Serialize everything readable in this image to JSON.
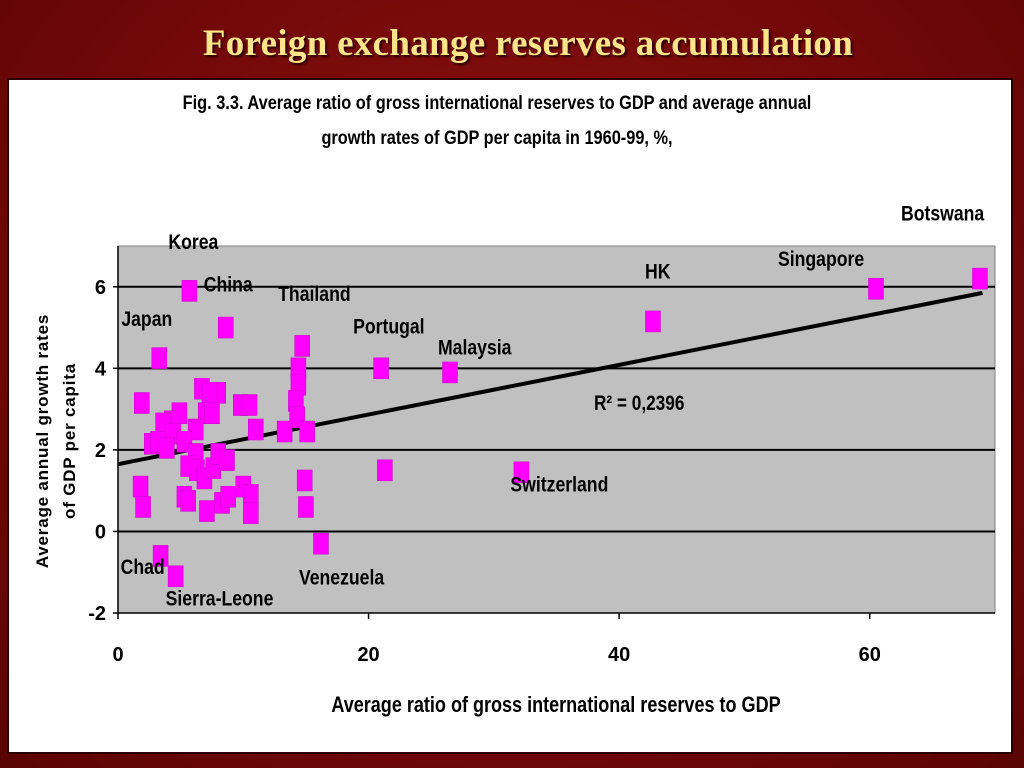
{
  "slide": {
    "title": "Foreign exchange reserves accumulation"
  },
  "figure": {
    "caption_line1": "Fig. 3.3. Average ratio of gross international reserves to GDP and average annual",
    "caption_line2": "growth rates of GDP per capita in 1960-99, %,"
  },
  "chart_data": {
    "type": "scatter",
    "title": "Fig. 3.3. Average ratio of gross international reserves to GDP and average annual growth rates of GDP per capita in 1960-99, %,",
    "xlabel": "Average ratio of gross international reserves to GDP",
    "ylabel_line1": "Average annual growth rates",
    "ylabel_line2": "of GDP per capita",
    "xlim": [
      0,
      70
    ],
    "ylim": [
      -2,
      7
    ],
    "x_ticks": [
      0,
      20,
      40,
      60
    ],
    "y_ticks": [
      -2,
      0,
      2,
      4,
      6
    ],
    "grid": "horizontal",
    "legend": "none",
    "colors": {
      "marker": "#ff00ff",
      "plot_bg": "#c0c0c0",
      "trend": "#000000"
    },
    "trendline": {
      "x": [
        0,
        69
      ],
      "y": [
        1.65,
        5.85
      ],
      "r2_label": "R² = 0,2396"
    },
    "points": [
      {
        "x": 68.8,
        "y": 6.2,
        "label": "Botswana"
      },
      {
        "x": 60.5,
        "y": 5.95,
        "label": "Singapore"
      },
      {
        "x": 42.7,
        "y": 5.15,
        "label": "HK"
      },
      {
        "x": 26.5,
        "y": 3.9,
        "label": "Malaysia"
      },
      {
        "x": 21.0,
        "y": 4.0,
        "label": "Portugal"
      },
      {
        "x": 32.2,
        "y": 1.45,
        "label": "Switzerland"
      },
      {
        "x": 16.2,
        "y": -0.3,
        "label": "Venezuela"
      },
      {
        "x": 14.7,
        "y": 4.55,
        "label": "Thailand"
      },
      {
        "x": 5.7,
        "y": 5.9,
        "label": "Korea"
      },
      {
        "x": 8.6,
        "y": 5.0,
        "label": "China"
      },
      {
        "x": 3.3,
        "y": 4.25,
        "label": "Japan"
      },
      {
        "x": 3.4,
        "y": -0.6,
        "label": "Chad"
      },
      {
        "x": 4.6,
        "y": -1.1,
        "label": "Sierra-Leone"
      },
      {
        "x": 21.3,
        "y": 1.5
      },
      {
        "x": 14.4,
        "y": 4.0
      },
      {
        "x": 14.4,
        "y": 3.6
      },
      {
        "x": 14.2,
        "y": 3.2
      },
      {
        "x": 14.3,
        "y": 2.8
      },
      {
        "x": 13.3,
        "y": 2.45
      },
      {
        "x": 15.1,
        "y": 2.45
      },
      {
        "x": 14.9,
        "y": 1.25
      },
      {
        "x": 15.0,
        "y": 0.6
      },
      {
        "x": 11.0,
        "y": 2.5
      },
      {
        "x": 9.8,
        "y": 3.1
      },
      {
        "x": 10.5,
        "y": 3.1
      },
      {
        "x": 8.0,
        "y": 3.4
      },
      {
        "x": 6.7,
        "y": 3.5
      },
      {
        "x": 7.3,
        "y": 3.4
      },
      {
        "x": 7.0,
        "y": 2.9
      },
      {
        "x": 7.5,
        "y": 2.9
      },
      {
        "x": 6.2,
        "y": 2.5
      },
      {
        "x": 4.9,
        "y": 2.9
      },
      {
        "x": 4.3,
        "y": 2.7
      },
      {
        "x": 3.6,
        "y": 2.65
      },
      {
        "x": 4.4,
        "y": 2.4
      },
      {
        "x": 5.3,
        "y": 2.2
      },
      {
        "x": 2.7,
        "y": 2.15
      },
      {
        "x": 3.2,
        "y": 2.2
      },
      {
        "x": 3.9,
        "y": 2.05
      },
      {
        "x": 6.2,
        "y": 1.9
      },
      {
        "x": 5.6,
        "y": 1.6
      },
      {
        "x": 6.3,
        "y": 1.5
      },
      {
        "x": 6.9,
        "y": 1.3
      },
      {
        "x": 7.6,
        "y": 1.55
      },
      {
        "x": 8.0,
        "y": 1.9
      },
      {
        "x": 8.7,
        "y": 1.75
      },
      {
        "x": 1.9,
        "y": 3.15
      },
      {
        "x": 1.8,
        "y": 1.1
      },
      {
        "x": 2.0,
        "y": 0.6
      },
      {
        "x": 5.3,
        "y": 0.85
      },
      {
        "x": 5.6,
        "y": 0.75
      },
      {
        "x": 7.1,
        "y": 0.5
      },
      {
        "x": 8.3,
        "y": 0.7
      },
      {
        "x": 8.8,
        "y": 0.85
      },
      {
        "x": 10.0,
        "y": 1.1
      },
      {
        "x": 10.6,
        "y": 0.9
      },
      {
        "x": 10.6,
        "y": 0.45
      }
    ]
  }
}
